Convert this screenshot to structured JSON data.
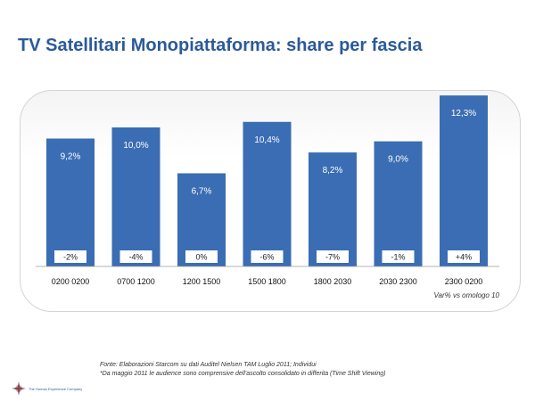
{
  "slide": {
    "title": "TV Satellitari Monopiattaforma: share per fascia",
    "footnote_source": "Fonte: Elaborazioni Starcom su dati Auditel Nielsen TAM  Luglio 2011; Individui",
    "footnote_note": "*Da maggio 2011 le audience sono comprensive dell'ascolto consolidato in differita (Time Shift Viewing)",
    "company_name": "The Human Experience Company",
    "logo_icon": "star-compass-icon"
  },
  "chart_data": {
    "type": "bar",
    "categories": [
      "0200 0200",
      "0700 1200",
      "1200 1500",
      "1500 1800",
      "1800 2030",
      "2030 2300",
      "2300 0200"
    ],
    "values": [
      9.2,
      10.0,
      6.7,
      10.4,
      8.2,
      9.0,
      12.3
    ],
    "value_labels": [
      "9,2%",
      "10,0%",
      "6,7%",
      "10,4%",
      "8,2%",
      "9,0%",
      "12,3%"
    ],
    "variation_labels": [
      "-2%",
      "-4%",
      "0%",
      "-6%",
      "-7%",
      "-1%",
      "+4%"
    ],
    "variation_note": "Var% vs omologo 10",
    "ylim": [
      0,
      14
    ],
    "bar_color": "#3a6db3",
    "grid": false,
    "legend": "none"
  }
}
